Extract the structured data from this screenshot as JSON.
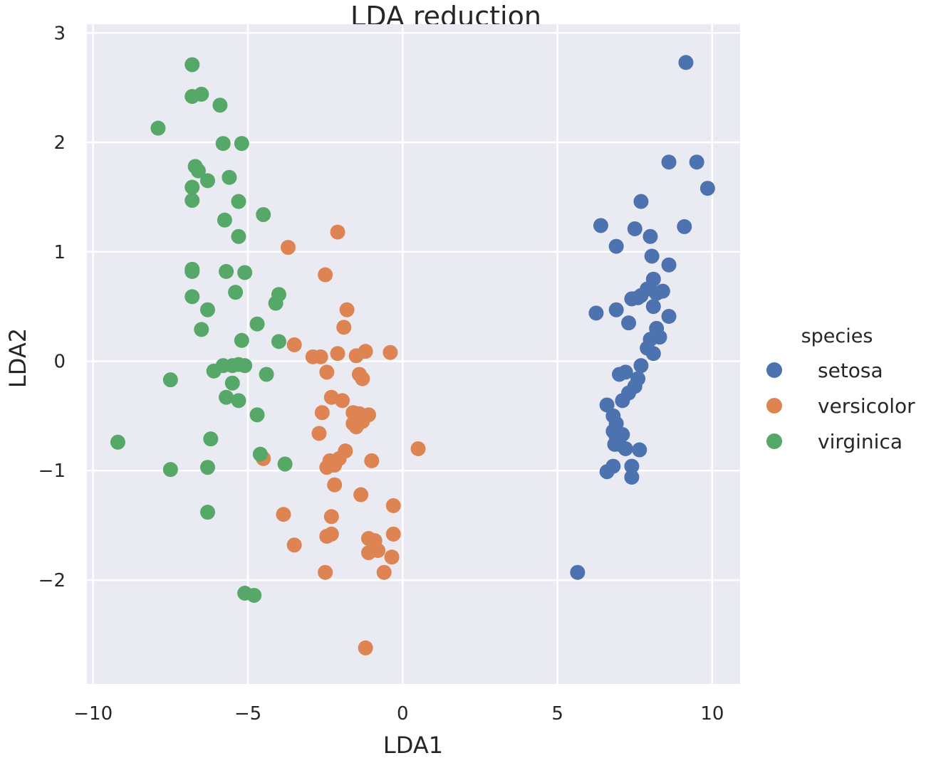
{
  "chart_data": {
    "type": "scatter",
    "title": "LDA reduction",
    "xlabel": "LDA1",
    "ylabel": "LDA2",
    "xlim": [
      -10.2,
      10.9
    ],
    "ylim": [
      -2.95,
      3.08
    ],
    "xticks": [
      -10,
      -5,
      0,
      5,
      10
    ],
    "xtick_labels": [
      "−10",
      "−5",
      "0",
      "5",
      "10"
    ],
    "yticks": [
      -2,
      -1,
      0,
      1,
      2,
      3
    ],
    "ytick_labels": [
      "−2",
      "−1",
      "0",
      "1",
      "2",
      "3"
    ],
    "grid": true,
    "legend": {
      "title": "species",
      "placement": "right"
    },
    "series": [
      {
        "name": "setosa",
        "color": "#4c72b0",
        "points": [
          [
            9.15,
            2.73
          ],
          [
            8.6,
            1.82
          ],
          [
            9.5,
            1.82
          ],
          [
            9.85,
            1.58
          ],
          [
            7.7,
            1.46
          ],
          [
            9.1,
            1.23
          ],
          [
            6.4,
            1.24
          ],
          [
            7.5,
            1.21
          ],
          [
            8.0,
            1.14
          ],
          [
            6.9,
            1.05
          ],
          [
            8.05,
            0.96
          ],
          [
            8.6,
            0.88
          ],
          [
            8.1,
            0.75
          ],
          [
            7.9,
            0.66
          ],
          [
            8.4,
            0.64
          ],
          [
            7.7,
            0.6
          ],
          [
            8.2,
            0.62
          ],
          [
            7.4,
            0.57
          ],
          [
            7.6,
            0.58
          ],
          [
            6.9,
            0.47
          ],
          [
            6.25,
            0.44
          ],
          [
            8.1,
            0.5
          ],
          [
            8.6,
            0.41
          ],
          [
            7.3,
            0.35
          ],
          [
            8.2,
            0.3
          ],
          [
            8.0,
            0.2
          ],
          [
            8.3,
            0.22
          ],
          [
            7.9,
            0.12
          ],
          [
            8.1,
            0.07
          ],
          [
            7.7,
            -0.04
          ],
          [
            7.2,
            -0.1
          ],
          [
            7.6,
            -0.16
          ],
          [
            7.5,
            -0.23
          ],
          [
            7.3,
            -0.29
          ],
          [
            7.1,
            -0.36
          ],
          [
            7.0,
            -0.12
          ],
          [
            6.6,
            -0.4
          ],
          [
            6.8,
            -0.5
          ],
          [
            6.9,
            -0.57
          ],
          [
            6.8,
            -0.64
          ],
          [
            7.1,
            -0.67
          ],
          [
            6.9,
            -0.69
          ],
          [
            6.85,
            -0.76
          ],
          [
            7.0,
            -0.76
          ],
          [
            7.2,
            -0.8
          ],
          [
            7.65,
            -0.81
          ],
          [
            7.4,
            -0.96
          ],
          [
            6.6,
            -1.01
          ],
          [
            6.8,
            -0.96
          ],
          [
            7.4,
            -1.06
          ],
          [
            5.65,
            -1.93
          ]
        ]
      },
      {
        "name": "versicolor",
        "color": "#dd8452",
        "points": [
          [
            -2.1,
            1.18
          ],
          [
            -3.7,
            1.04
          ],
          [
            -2.5,
            0.79
          ],
          [
            -1.8,
            0.47
          ],
          [
            -1.9,
            0.31
          ],
          [
            -3.5,
            0.15
          ],
          [
            -2.9,
            0.04
          ],
          [
            -2.65,
            0.04
          ],
          [
            -2.1,
            0.07
          ],
          [
            -1.5,
            0.05
          ],
          [
            -1.2,
            0.09
          ],
          [
            -0.4,
            0.08
          ],
          [
            -2.45,
            -0.1
          ],
          [
            -1.4,
            -0.12
          ],
          [
            -1.3,
            -0.16
          ],
          [
            -2.3,
            -0.33
          ],
          [
            -1.95,
            -0.36
          ],
          [
            -1.6,
            -0.47
          ],
          [
            -1.4,
            -0.48
          ],
          [
            -1.1,
            -0.49
          ],
          [
            -2.6,
            -0.47
          ],
          [
            -1.3,
            -0.55
          ],
          [
            -1.6,
            -0.57
          ],
          [
            -1.5,
            -0.6
          ],
          [
            -2.7,
            -0.66
          ],
          [
            -1.85,
            -0.82
          ],
          [
            -2.05,
            -0.89
          ],
          [
            -2.35,
            -0.91
          ],
          [
            -2.45,
            -0.97
          ],
          [
            -1.0,
            -0.91
          ],
          [
            0.5,
            -0.8
          ],
          [
            -2.2,
            -1.13
          ],
          [
            -1.35,
            -1.22
          ],
          [
            -0.3,
            -1.32
          ],
          [
            -3.85,
            -1.4
          ],
          [
            -2.3,
            -1.42
          ],
          [
            -2.45,
            -1.6
          ],
          [
            -2.3,
            -1.58
          ],
          [
            -1.1,
            -1.62
          ],
          [
            -0.9,
            -1.64
          ],
          [
            -0.3,
            -1.58
          ],
          [
            -3.5,
            -1.68
          ],
          [
            -1.1,
            -1.75
          ],
          [
            -0.8,
            -1.73
          ],
          [
            -0.35,
            -1.79
          ],
          [
            -2.5,
            -1.93
          ],
          [
            -0.6,
            -1.93
          ],
          [
            -1.2,
            -2.62
          ],
          [
            -4.5,
            -0.89
          ],
          [
            -2.2,
            -0.95
          ]
        ]
      },
      {
        "name": "virginica",
        "color": "#55a868",
        "points": [
          [
            -6.8,
            2.71
          ],
          [
            -6.8,
            2.42
          ],
          [
            -6.5,
            2.44
          ],
          [
            -5.9,
            2.34
          ],
          [
            -7.9,
            2.13
          ],
          [
            -5.8,
            1.99
          ],
          [
            -5.2,
            1.99
          ],
          [
            -6.7,
            1.78
          ],
          [
            -6.6,
            1.74
          ],
          [
            -6.3,
            1.65
          ],
          [
            -5.6,
            1.68
          ],
          [
            -6.8,
            1.59
          ],
          [
            -5.3,
            1.46
          ],
          [
            -6.8,
            1.47
          ],
          [
            -4.5,
            1.34
          ],
          [
            -5.75,
            1.29
          ],
          [
            -5.3,
            1.14
          ],
          [
            -6.8,
            0.82
          ],
          [
            -6.8,
            0.84
          ],
          [
            -5.7,
            0.82
          ],
          [
            -5.1,
            0.81
          ],
          [
            -4.0,
            0.61
          ],
          [
            -5.4,
            0.63
          ],
          [
            -6.8,
            0.59
          ],
          [
            -4.1,
            0.53
          ],
          [
            -6.3,
            0.47
          ],
          [
            -4.7,
            0.34
          ],
          [
            -6.5,
            0.29
          ],
          [
            -5.2,
            0.19
          ],
          [
            -4.0,
            0.18
          ],
          [
            -5.8,
            -0.04
          ],
          [
            -5.5,
            -0.04
          ],
          [
            -5.3,
            -0.03
          ],
          [
            -5.1,
            -0.04
          ],
          [
            -6.1,
            -0.09
          ],
          [
            -4.4,
            -0.12
          ],
          [
            -5.5,
            -0.2
          ],
          [
            -7.5,
            -0.17
          ],
          [
            -5.7,
            -0.33
          ],
          [
            -5.3,
            -0.36
          ],
          [
            -4.7,
            -0.49
          ],
          [
            -6.2,
            -0.71
          ],
          [
            -9.2,
            -0.74
          ],
          [
            -4.6,
            -0.85
          ],
          [
            -3.8,
            -0.94
          ],
          [
            -7.5,
            -0.99
          ],
          [
            -6.3,
            -0.97
          ],
          [
            -6.3,
            -1.38
          ],
          [
            -5.1,
            -2.12
          ],
          [
            -4.8,
            -2.14
          ]
        ]
      }
    ]
  }
}
